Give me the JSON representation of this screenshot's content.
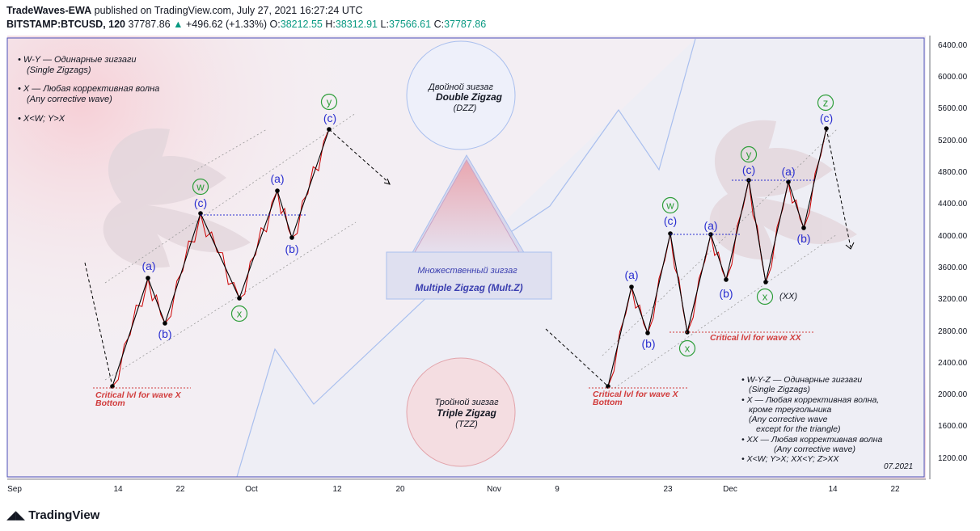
{
  "header": {
    "author": "TradeWaves-EWA",
    "published": "published on TradingView.com, July 27, 2021 16:27:24 UTC",
    "symbol": "BITSTAMP:BTCUSD, 120",
    "last": "37787.86",
    "change": "+496.62 (+1.33%)",
    "o_label": "O:",
    "o": "38212.55",
    "h_label": "H:",
    "h": "38312.91",
    "l_label": "L:",
    "l": "37566.61",
    "c_label": "C:",
    "c": "37787.86"
  },
  "footer": {
    "logo": "TradingView"
  },
  "colors": {
    "wave": "#cc0000",
    "zigzag": "#000000",
    "blue_label": "#2a2fd0",
    "green_label": "#2e9e3a",
    "critical": "#d13c3c",
    "axis_text": "#131722"
  },
  "chart_data": {
    "type": "line",
    "y_axis": {
      "ticks": [
        "6400.00",
        "6000.00",
        "5600.00",
        "5200.00",
        "4800.00",
        "4400.00",
        "4000.00",
        "3600.00",
        "3200.00",
        "2800.00",
        "2400.00",
        "2000.00",
        "1600.00",
        "1200.00"
      ]
    },
    "x_axis": {
      "ticks": [
        "Sep",
        "14",
        "22",
        "Oct",
        "12",
        "20",
        "Nov",
        "9",
        "23",
        "Dec",
        "14",
        "22"
      ]
    },
    "left_pattern": {
      "notes": [
        "• W-Y — Одинарные зигзаги",
        "(Single Zigzags)",
        "• X — Любая коррективная волна",
        "(Any corrective wave)",
        "• X<W; Y>X"
      ],
      "labels": {
        "a1": "(a)",
        "b1": "(b)",
        "c1": "(c)",
        "w": "w",
        "x": "x",
        "a2": "(a)",
        "b2": "(b)",
        "c2": "(c)",
        "y": "y"
      },
      "critical": [
        "Critical lvl for wave X",
        "Bottom"
      ]
    },
    "center": {
      "ddz": [
        "Двойной зигзаг",
        "Double Zigzag",
        "(DZZ)"
      ],
      "multiple": [
        "Множественный зигзаг",
        "Multiple Zigzag (Mult.Z)"
      ],
      "tzz": [
        "Тройной зигзаг",
        "Triple Zigzag",
        "(TZZ)"
      ]
    },
    "right_pattern": {
      "labels": {
        "a1": "(a)",
        "b1": "(b)",
        "c1": "(c)",
        "w": "w",
        "a2": "(a)",
        "b2": "(b)",
        "c2": "(c)",
        "x": "x",
        "y": "y",
        "a3": "(a)",
        "b3": "(b)",
        "c3": "(c)",
        "xx": "x",
        "xx_note": "(XX)",
        "z": "z"
      },
      "critical_x": [
        "Critical lvl for wave X",
        "Bottom"
      ],
      "critical_xx": "Critical lvl for wave XX",
      "notes": [
        "• W-Y-Z  — Одинарные зигзаги",
        "(Single Zigzags)",
        "• X — Любая коррективная волна,",
        "кроме треугольника",
        "(Any corrective wave",
        "except for the triangle)",
        "• XX — Любая коррективная волна",
        "(Any corrective wave)",
        "• X<W; Y>X; XX<Y; Z>XX"
      ],
      "date": "07.2021"
    }
  }
}
